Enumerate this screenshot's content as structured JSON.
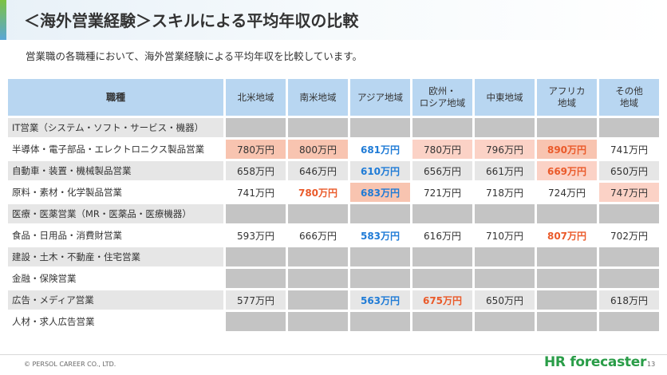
{
  "title": "＜海外営業経験＞スキルによる平均年収の比較",
  "subtitle": "営業職の各職種において、海外営業経験による平均年収を比較しています。",
  "table": {
    "headers": [
      "職種",
      "北米地域",
      "南米地域",
      "アジア地域",
      "欧州・\nロシア地域",
      "中東地域",
      "アフリカ\n地域",
      "その他\n地域"
    ],
    "rows": [
      {
        "job": "IT営業（システム・ソフト・サービス・機器）",
        "cells": [
          "",
          "",
          "",
          "",
          "",
          "",
          ""
        ]
      },
      {
        "job": "半導体・電子部品・エレクトロニクス製品営業",
        "cells": [
          "780万円",
          "800万円",
          "681万円",
          "780万円",
          "796万円",
          "890万円",
          "741万円"
        ]
      },
      {
        "job": "自動車・装置・機械製品営業",
        "cells": [
          "658万円",
          "646万円",
          "610万円",
          "656万円",
          "661万円",
          "669万円",
          "650万円"
        ]
      },
      {
        "job": "原料・素材・化学製品営業",
        "cells": [
          "741万円",
          "780万円",
          "683万円",
          "721万円",
          "718万円",
          "724万円",
          "747万円"
        ]
      },
      {
        "job": "医療・医薬営業（MR・医薬品・医療機器）",
        "cells": [
          "",
          "",
          "",
          "",
          "",
          "",
          ""
        ]
      },
      {
        "job": "食品・日用品・消費財営業",
        "cells": [
          "593万円",
          "666万円",
          "583万円",
          "616万円",
          "710万円",
          "807万円",
          "702万円"
        ]
      },
      {
        "job": "建設・土木・不動産・住宅営業",
        "cells": [
          "",
          "",
          "",
          "",
          "",
          "",
          ""
        ]
      },
      {
        "job": "金融・保険営業",
        "cells": [
          "",
          "",
          "",
          "",
          "",
          "",
          ""
        ]
      },
      {
        "job": "広告・メディア営業",
        "cells": [
          "577万円",
          "",
          "563万円",
          "675万円",
          "650万円",
          "",
          "618万円"
        ]
      },
      {
        "job": "人材・求人広告営業",
        "cells": [
          "",
          "",
          "",
          "",
          "",
          "",
          ""
        ]
      }
    ]
  },
  "footer": {
    "copyright": "© PERSOL CAREER CO., LTD.",
    "logo": "HR forecaster",
    "page": "13"
  },
  "colors": {
    "header_bg": "#b8d6f1",
    "highlight_bg": "#f8c4b0",
    "highest_text": "#ea5a2a",
    "lowest_text": "#1f7bd6",
    "empty_bg": "#c4c4c4",
    "brand": "#2a9d48"
  }
}
